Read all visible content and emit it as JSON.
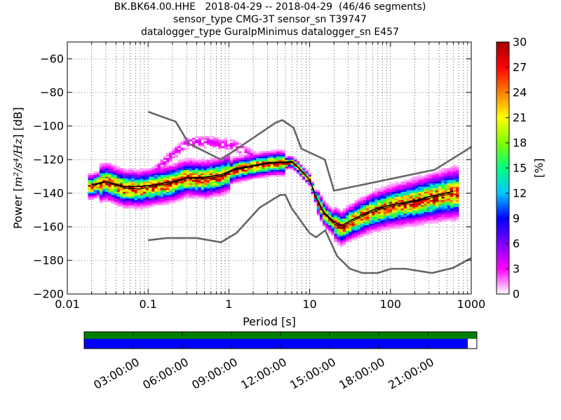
{
  "title_lines": [
    "BK.BK64.00.HHE   2018-04-29 -- 2018-04-29  (46/46 segments)",
    "sensor_type CMG-3T sensor_sn T39747",
    "datalogger_type GuralpMinimus datalogger_sn E457"
  ],
  "chart_data": {
    "type": "heatmap",
    "xlabel": "Period [s]",
    "ylabel_prefix": "Power [",
    "ylabel_units": "m²/s⁴/Hz",
    "ylabel_suffix": "] [dB]",
    "xscale": "log",
    "xlim": [
      0.01,
      1000
    ],
    "ylim": [
      -200,
      -50
    ],
    "x_ticks": [
      0.01,
      0.1,
      1,
      10,
      100,
      1000
    ],
    "x_tick_labels": [
      "0.01",
      "0.1",
      "1",
      "10",
      "100",
      "1000"
    ],
    "y_ticks": [
      -200,
      -180,
      -160,
      -140,
      -120,
      -100,
      -80,
      -60
    ],
    "y_tick_labels": [
      "−200",
      "−180",
      "−160",
      "−140",
      "−120",
      "−100",
      "−80",
      "−60"
    ],
    "grid": "dotted",
    "colorbar": {
      "label": "[%]",
      "min": 0,
      "max": 30,
      "ticks": [
        "0",
        "3",
        "6",
        "9",
        "12",
        "15",
        "18",
        "21",
        "24",
        "27",
        "30"
      ],
      "colormap": [
        "#ffffff",
        "#ff00ff",
        "#7f00ff",
        "#0000ff",
        "#00c8ff",
        "#00ff7f",
        "#7fff00",
        "#ffff00",
        "#ff7f00",
        "#ff0000",
        "#a00000"
      ]
    },
    "noise_models": [
      {
        "name": "NHNM",
        "x": [
          0.1,
          0.22,
          0.32,
          0.8,
          3.8,
          4.6,
          6.3,
          7.9,
          15.4,
          20,
          354.8,
          1000
        ],
        "y": [
          -91.5,
          -97.4,
          -110.5,
          -120.0,
          -98.0,
          -96.5,
          -101.0,
          -113.5,
          -120.0,
          -138.5,
          -126.0,
          -112.5
        ]
      },
      {
        "name": "NLNM",
        "x": [
          0.1,
          0.17,
          0.4,
          0.8,
          1.24,
          2.4,
          4.3,
          5.0,
          6.0,
          10.0,
          12.0,
          15.6,
          21.9,
          31.6,
          45.0,
          70.0,
          101.0,
          154.0,
          328.0,
          600.0,
          1000.0
        ],
        "y": [
          -168.0,
          -166.7,
          -166.7,
          -169.2,
          -163.7,
          -148.6,
          -141.1,
          -141.1,
          -149.0,
          -163.8,
          -166.2,
          -162.1,
          -177.5,
          -185.0,
          -187.5,
          -187.5,
          -185.0,
          -185.0,
          -187.5,
          -184.4,
          -178.6
        ]
      }
    ],
    "mode_curve": {
      "x": [
        0.02,
        0.03,
        0.05,
        0.08,
        0.12,
        0.2,
        0.3,
        0.5,
        0.8,
        1.2,
        2,
        3,
        4,
        5,
        6,
        7,
        8,
        10,
        12,
        15,
        20,
        25,
        30,
        40,
        60,
        100,
        200,
        300,
        600
      ],
      "y": [
        -136,
        -133,
        -137,
        -137.5,
        -136,
        -134,
        -131,
        -131.5,
        -130,
        -126,
        -124,
        -122.5,
        -122,
        -122,
        -121.5,
        -124,
        -127,
        -132,
        -143,
        -152,
        -158,
        -161,
        -158,
        -155,
        -151,
        -148,
        -145,
        -143,
        -140
      ]
    },
    "mean_curve": {
      "x": [
        0.02,
        0.03,
        0.05,
        0.08,
        0.12,
        0.2,
        0.3,
        0.5,
        0.8,
        1.2,
        2,
        3,
        4,
        5,
        6,
        7,
        8,
        10,
        12,
        15,
        20,
        25,
        30,
        40,
        60,
        100,
        200,
        300,
        600
      ],
      "y": [
        -135,
        -133,
        -136,
        -136,
        -135,
        -133,
        -131,
        -130.5,
        -129,
        -125.5,
        -123.5,
        -122,
        -121.5,
        -121.5,
        -121,
        -124,
        -127,
        -132,
        -142.5,
        -151.5,
        -157,
        -159.5,
        -157,
        -154,
        -150,
        -147,
        -144.5,
        -142,
        -139
      ]
    }
  },
  "timeline": {
    "tick_labels": [
      "03:00:00",
      "06:00:00",
      "09:00:00",
      "12:00:00",
      "15:00:00",
      "18:00:00",
      "21:00:00"
    ],
    "tick_hours": [
      3,
      6,
      9,
      12,
      15,
      18,
      21
    ],
    "range_hours": [
      0,
      24
    ],
    "coverage_fraction": 0.977,
    "data_color": "#0000ff",
    "gap_color": "#008000"
  }
}
